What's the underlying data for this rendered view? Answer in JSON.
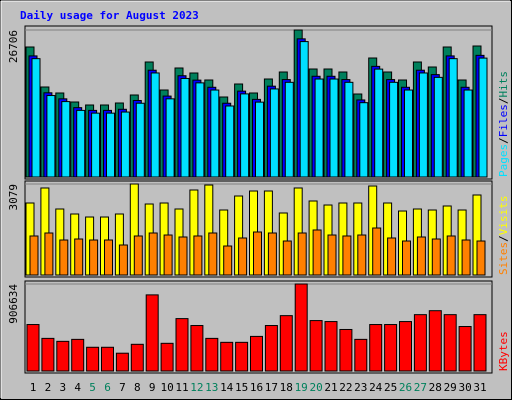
{
  "chart_data": [
    {
      "type": "bar",
      "title": "Daily usage for August 2023",
      "title_color": "#0000FF",
      "series": [
        {
          "name": "Hits",
          "color": "#00805C",
          "values": [
            23618,
            16351,
            15261,
            13626,
            13081,
            13081,
            13444,
            14898,
            20893,
            15806,
            19803,
            18894,
            17623,
            14534,
            16896,
            15261,
            17804,
            19076,
            26706,
            19621,
            19621,
            19076,
            15079,
            21619,
            19076,
            17623,
            20893,
            19984,
            23618,
            17623,
            23799
          ]
        },
        {
          "name": "Files",
          "color": "#0000FF",
          "values": [
            22000,
            15300,
            14200,
            12600,
            12100,
            12100,
            12300,
            13900,
            19400,
            14700,
            18400,
            17600,
            16300,
            13400,
            15600,
            14100,
            16500,
            17700,
            25100,
            18300,
            18300,
            17700,
            14000,
            20100,
            17700,
            16300,
            19400,
            18600,
            22000,
            16300,
            22100
          ]
        },
        {
          "name": "Pages",
          "color": "#00E0FF",
          "values": [
            21500,
            14800,
            13700,
            12100,
            11600,
            11600,
            11800,
            13400,
            18900,
            14200,
            17900,
            17100,
            15800,
            12900,
            15100,
            13600,
            16000,
            17200,
            24600,
            17800,
            17800,
            17200,
            13500,
            19600,
            17200,
            15800,
            18900,
            18100,
            21500,
            15800,
            21600
          ]
        }
      ],
      "legend_separator": "/",
      "ylim": [
        0,
        26706
      ],
      "yticks": [
        26706
      ]
    },
    {
      "type": "bar",
      "series": [
        {
          "name": "Visits",
          "color": "#FFFF00",
          "values": [
            2436,
            2944,
            2233,
            2064,
            1962,
            1962,
            2064,
            3079,
            2402,
            2436,
            2233,
            2876,
            3044,
            2199,
            2673,
            2842,
            2842,
            2098,
            2944,
            2504,
            2368,
            2436,
            2436,
            3011,
            2436,
            2165,
            2233,
            2199,
            2335,
            2199,
            2707
          ]
        },
        {
          "name": "Sites",
          "color": "#FF8000",
          "values": [
            1320,
            1421,
            1184,
            1218,
            1184,
            1184,
            1015,
            1320,
            1421,
            1353,
            1286,
            1320,
            1421,
            981,
            1252,
            1455,
            1421,
            1150,
            1421,
            1523,
            1353,
            1320,
            1353,
            1590,
            1252,
            1150,
            1286,
            1218,
            1320,
            1184,
            1150
          ]
        }
      ],
      "legend_separator": "/",
      "ylim": [
        0,
        3079
      ],
      "yticks": [
        3079
      ]
    },
    {
      "type": "bar",
      "categories": [
        "1",
        "2",
        "3",
        "4",
        "5",
        "6",
        "7",
        "8",
        "9",
        "10",
        "11",
        "12",
        "13",
        "14",
        "15",
        "16",
        "17",
        "18",
        "19",
        "20",
        "21",
        "22",
        "23",
        "24",
        "25",
        "26",
        "27",
        "28",
        "29",
        "30",
        "31"
      ],
      "category_colors": [
        "#000000",
        "#000000",
        "#000000",
        "#000000",
        "#00805C",
        "#00805C",
        "#000000",
        "#000000",
        "#000000",
        "#000000",
        "#000000",
        "#00805C",
        "#00805C",
        "#000000",
        "#000000",
        "#000000",
        "#000000",
        "#000000",
        "#00805C",
        "#00805C",
        "#000000",
        "#000000",
        "#000000",
        "#000000",
        "#000000",
        "#00805C",
        "#00805C",
        "#000000",
        "#000000",
        "#000000",
        "#000000"
      ],
      "series": [
        {
          "name": "KBytes",
          "color": "#FF0000",
          "values": [
            484222,
            339988,
            309080,
            329685,
            247264,
            247264,
            185448,
            278172,
            793305,
            288474,
            546041,
            473922,
            339988,
            298777,
            298777,
            360593,
            473922,
            576949,
            906634,
            525436,
            515133,
            432712,
            329685,
            484222,
            484222,
            515133,
            587252,
            628462,
            587252,
            463615,
            587252
          ]
        }
      ],
      "ylim": [
        0,
        906634
      ],
      "yticks": [
        906634
      ]
    }
  ]
}
